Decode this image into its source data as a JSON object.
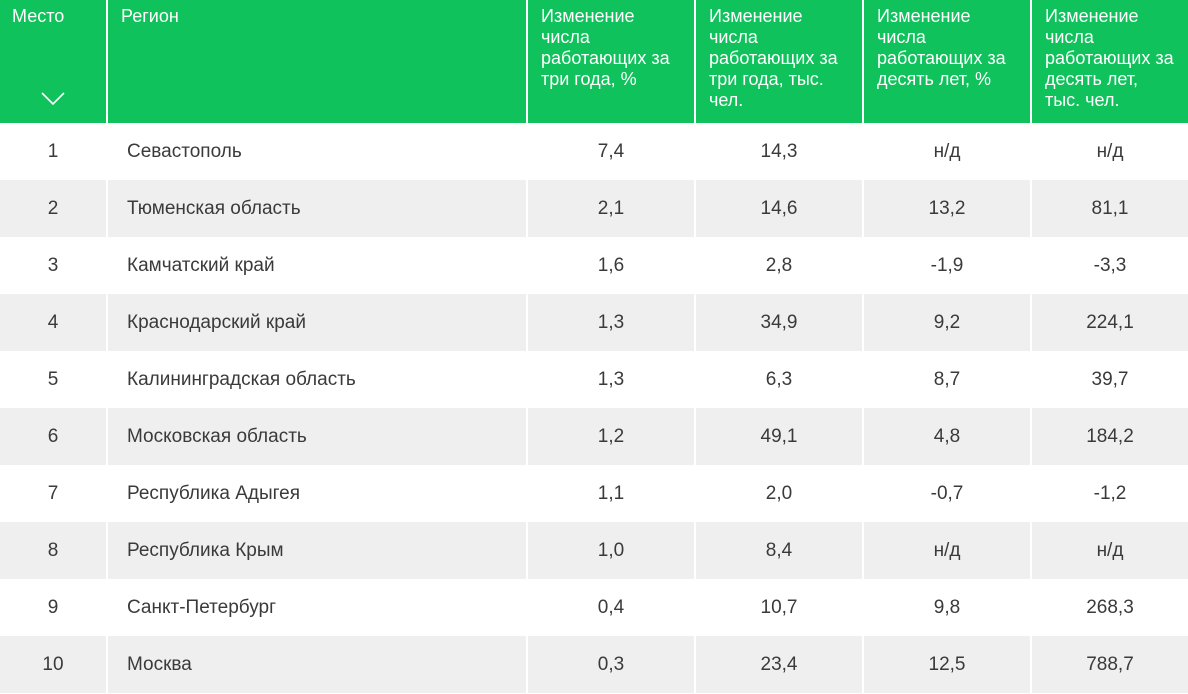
{
  "table": {
    "headers": [
      "Место",
      "Регион",
      "Изменение числа работающих за три года, %",
      "Изменение числа работающих за три года, тыс. чел.",
      "Изменение числа работающих за десять лет, %",
      "Изменение числа работающих за десять лет, тыс. чел."
    ],
    "sort_icon": "chevron-down-icon",
    "rows": [
      {
        "rank": "1",
        "region": "Севастополь",
        "v3pct": "7,4",
        "v3abs": "14,3",
        "v10pct": "н/д",
        "v10abs": "н/д"
      },
      {
        "rank": "2",
        "region": "Тюменская область",
        "v3pct": "2,1",
        "v3abs": "14,6",
        "v10pct": "13,2",
        "v10abs": "81,1"
      },
      {
        "rank": "3",
        "region": "Камчатский край",
        "v3pct": "1,6",
        "v3abs": "2,8",
        "v10pct": "-1,9",
        "v10abs": "-3,3"
      },
      {
        "rank": "4",
        "region": "Краснодарский край",
        "v3pct": "1,3",
        "v3abs": "34,9",
        "v10pct": "9,2",
        "v10abs": "224,1"
      },
      {
        "rank": "5",
        "region": "Калининградская область",
        "v3pct": "1,3",
        "v3abs": "6,3",
        "v10pct": "8,7",
        "v10abs": "39,7"
      },
      {
        "rank": "6",
        "region": "Московская область",
        "v3pct": "1,2",
        "v3abs": "49,1",
        "v10pct": "4,8",
        "v10abs": "184,2"
      },
      {
        "rank": "7",
        "region": "Республика Адыгея",
        "v3pct": "1,1",
        "v3abs": "2,0",
        "v10pct": "-0,7",
        "v10abs": "-1,2"
      },
      {
        "rank": "8",
        "region": "Республика Крым",
        "v3pct": "1,0",
        "v3abs": "8,4",
        "v10pct": "н/д",
        "v10abs": "н/д"
      },
      {
        "rank": "9",
        "region": "Санкт-Петербург",
        "v3pct": "0,4",
        "v3abs": "10,7",
        "v10pct": "9,8",
        "v10abs": "268,3"
      },
      {
        "rank": "10",
        "region": "Москва",
        "v3pct": "0,3",
        "v3abs": "23,4",
        "v10pct": "12,5",
        "v10abs": "788,7"
      }
    ]
  },
  "colors": {
    "header_bg": "#10c25b",
    "header_text": "#ffffff",
    "row_stripe": "#efefef",
    "cell_text": "#3a3a3a"
  }
}
